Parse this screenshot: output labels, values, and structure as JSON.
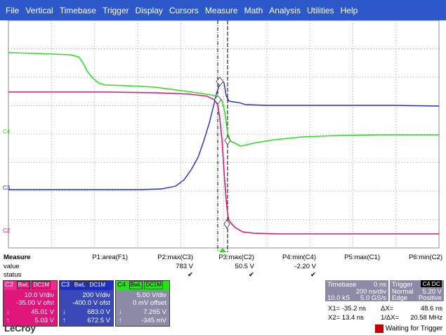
{
  "menu": [
    "File",
    "Vertical",
    "Timebase",
    "Trigger",
    "Display",
    "Cursors",
    "Measure",
    "Math",
    "Analysis",
    "Utilities",
    "Help"
  ],
  "channel_markers": {
    "c4": "C4",
    "c3": "C3",
    "c2": "C2"
  },
  "colors": {
    "c2": "#e0157a",
    "c3": "#1f2fc4",
    "c4": "#29e01f",
    "menubar": "#2d58c9",
    "panel": "#8b8ba8",
    "status_trigger": "#c40000"
  },
  "measure": {
    "row_labels": [
      "Measure",
      "value",
      "status"
    ],
    "params": [
      {
        "name": "P1:area(F1)",
        "value": "",
        "status": ""
      },
      {
        "name": "P2:max(C3)",
        "value": "783 V",
        "status": "✔"
      },
      {
        "name": "P3:max(C2)",
        "value": "50.5 V",
        "status": "✔"
      },
      {
        "name": "P4:min(C4)",
        "value": "-2.20 V",
        "status": "✔"
      },
      {
        "name": "P5:max(C1)",
        "value": "",
        "status": ""
      },
      {
        "name": "P6:min(C2)",
        "value": "",
        "status": ""
      }
    ]
  },
  "channels": [
    {
      "id": "C2",
      "chips": [
        "BwL",
        "DC1M"
      ],
      "vdiv": "10.0 V/div",
      "offset": "-35.00 V ofst",
      "val1": "45.01 V",
      "val2": "5.03 V",
      "color": "#e0157a"
    },
    {
      "id": "C3",
      "chips": [
        "BwL",
        "DC1M"
      ],
      "vdiv": "200 V/div",
      "offset": "-400.0 V ofst",
      "val1": "683.0 V",
      "val2": "672.5 V",
      "color": "#1f2fc4"
    },
    {
      "id": "C4",
      "chips": [
        "BwL",
        "DC1M"
      ],
      "vdiv": "5.00 V/div",
      "offset": "0 mV offset",
      "val1": "7.265 V",
      "val2": "-345 mV",
      "color": "#29e01f"
    }
  ],
  "timebase": {
    "label": "Timebase",
    "delay": "0 ns",
    "tdiv": "200 ns/div",
    "samples": "10.0 kS",
    "rate": "5.0 GS/s"
  },
  "trigger": {
    "label": "Trigger",
    "source": "C4",
    "coupling": "DC",
    "mode": "Normal",
    "level": "5.20 V",
    "edge": "Edge",
    "slope": "Positive"
  },
  "cursors": {
    "x1": "X1= -35.2 ns",
    "dx": "ΔX=",
    "dx_val": "48.6 ns",
    "x2": "X2= 13.4 ns",
    "inv_dx": "1/ΔX=",
    "inv_dx_val": "20.58 MHz"
  },
  "status": "Waiting for Trigger",
  "logo": "LeCroy"
}
